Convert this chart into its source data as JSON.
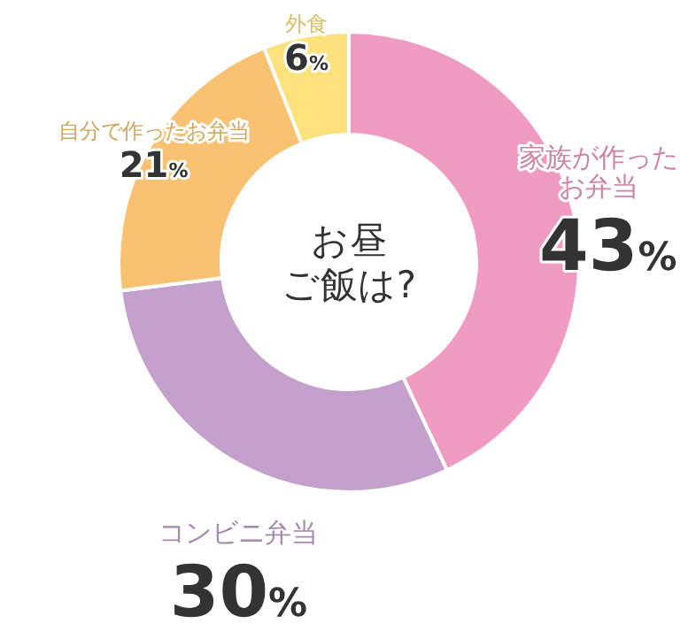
{
  "chart_data": {
    "type": "donut",
    "title": "お昼ご飯は?",
    "categories": [
      "家族が作ったお弁当",
      "コンビニ弁当",
      "自分で作ったお弁当",
      "外食"
    ],
    "values": [
      43,
      30,
      21,
      6
    ],
    "value_labels": [
      "43%",
      "30%",
      "21%",
      "6%"
    ],
    "colors": [
      "#f09bc1",
      "#c4a1cd",
      "#f8c272",
      "#fde17b"
    ]
  }
}
